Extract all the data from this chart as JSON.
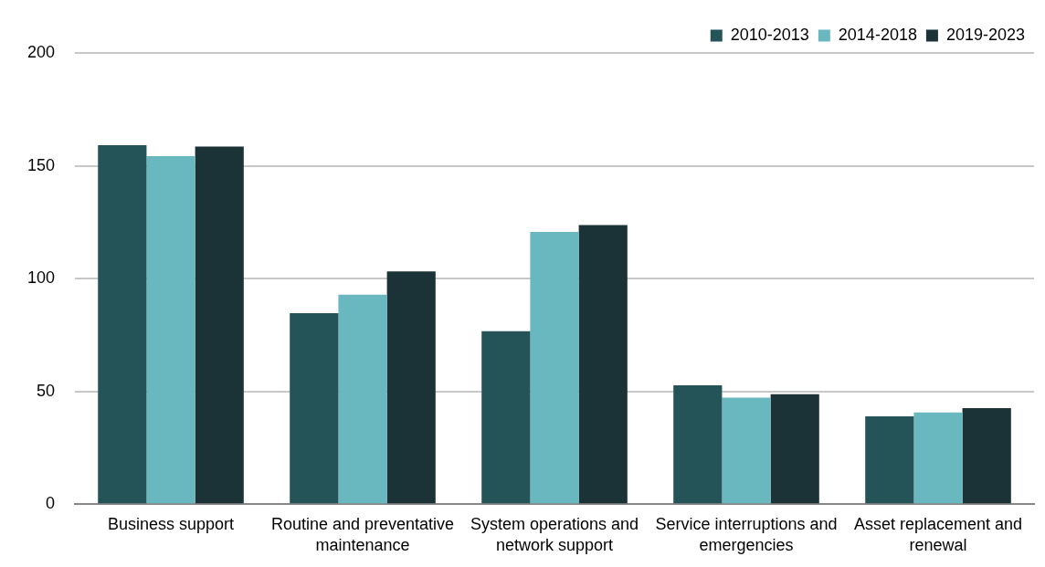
{
  "chart_data": {
    "type": "bar",
    "categories": [
      "Business support",
      "Routine and preventative maintenance",
      "System operations and network support",
      "Service interruptions and emergencies",
      "Asset replacement and renewal"
    ],
    "series": [
      {
        "name": "2010-2013",
        "color": "#245358",
        "values": [
          159.1,
          84.7,
          76.7,
          52.7,
          38.9
        ]
      },
      {
        "name": "2014-2018",
        "color": "#6ab8bf",
        "values": [
          154.3,
          92.9,
          120.7,
          47.2,
          40.7
        ]
      },
      {
        "name": "2019-2023",
        "color": "#1b3337",
        "values": [
          158.5,
          103.2,
          123.7,
          48.7,
          42.6
        ]
      }
    ],
    "ylim": [
      0,
      200
    ],
    "yticks": [
      0,
      50,
      100,
      150,
      200
    ],
    "grid": "y",
    "legend": "top right"
  }
}
